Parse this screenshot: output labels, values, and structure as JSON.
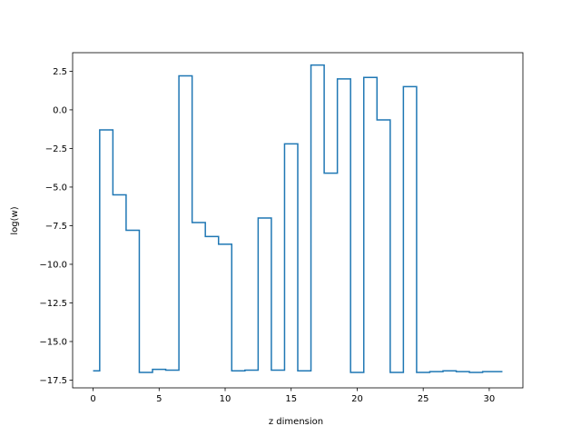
{
  "chart_data": {
    "type": "line",
    "drawstyle": "steps-mid",
    "title": "",
    "xlabel": "z dimension",
    "ylabel": "log(w)",
    "xlim": [
      -1.55,
      32.55
    ],
    "ylim": [
      -18.0,
      3.7
    ],
    "xticks": [
      0,
      5,
      10,
      15,
      20,
      25,
      30
    ],
    "xtick_labels": [
      "0",
      "5",
      "10",
      "15",
      "20",
      "25",
      "30"
    ],
    "yticks": [
      -17.5,
      -15.0,
      -12.5,
      -10.0,
      -7.5,
      -5.0,
      -2.5,
      0.0,
      2.5
    ],
    "ytick_labels": [
      "−17.5",
      "−15.0",
      "−12.5",
      "−10.0",
      "−7.5",
      "−5.0",
      "−2.5",
      "0.0",
      "2.5"
    ],
    "grid": false,
    "series": [
      {
        "color": "#1f77b4",
        "x": [
          0,
          1,
          2,
          3,
          4,
          5,
          6,
          7,
          8,
          9,
          10,
          11,
          12,
          13,
          14,
          15,
          16,
          17,
          18,
          19,
          20,
          21,
          22,
          23,
          24,
          25,
          26,
          27,
          28,
          29,
          30,
          31
        ],
        "y": [
          -16.9,
          -1.3,
          -5.5,
          -7.8,
          -17.0,
          -16.8,
          -16.85,
          2.2,
          -7.3,
          -8.2,
          -8.7,
          -16.9,
          -16.85,
          -7.0,
          -16.85,
          -2.2,
          -16.9,
          2.9,
          -4.1,
          2.0,
          -17.0,
          2.1,
          -0.65,
          -17.0,
          1.5,
          -17.0,
          -16.95,
          -16.9,
          -16.95,
          -17.0,
          -16.95,
          -16.95
        ]
      }
    ]
  }
}
